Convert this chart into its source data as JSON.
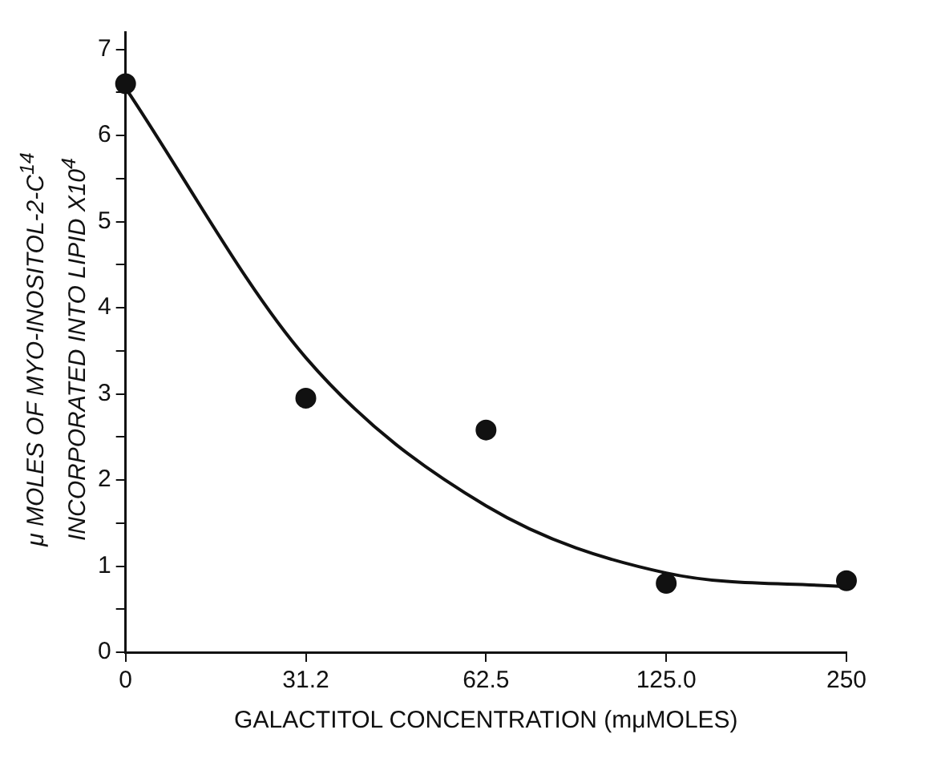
{
  "chart_data": {
    "type": "scatter",
    "xlabel": "GALACTITOL CONCENTRATION (mμMOLES)",
    "ylabel": "μ MOLES OF MYO-INOSITOL-2-C$^{14}$ INCORPORATED INTO LIPID X10$^{4}$",
    "categories": [
      "0",
      "31.2",
      "62.5",
      "125.0",
      "250"
    ],
    "series": [
      {
        "color": "#111111",
        "marker": "circle",
        "values": [
          6.6,
          2.95,
          2.58,
          0.8,
          0.83
        ]
      },
      {
        "type": "line",
        "color": "#111111",
        "marker": "none",
        "line_style": "solid",
        "values": [
          6.55,
          3.42,
          1.7,
          0.92,
          0.76
        ]
      }
    ],
    "ylim": [
      0,
      7.2
    ],
    "yticks": [
      0,
      {
        "value": 0.5,
        "label": null
      },
      1,
      {
        "value": 1.5,
        "label": null
      },
      2,
      {
        "value": 2.5,
        "label": null
      },
      3,
      {
        "value": 3.5,
        "label": null
      },
      4,
      {
        "value": 4.5,
        "label": null
      },
      5,
      {
        "value": 5.5,
        "label": null
      },
      6,
      {
        "value": 6.5,
        "label": null
      },
      7
    ],
    "grid": false,
    "legend": false
  }
}
